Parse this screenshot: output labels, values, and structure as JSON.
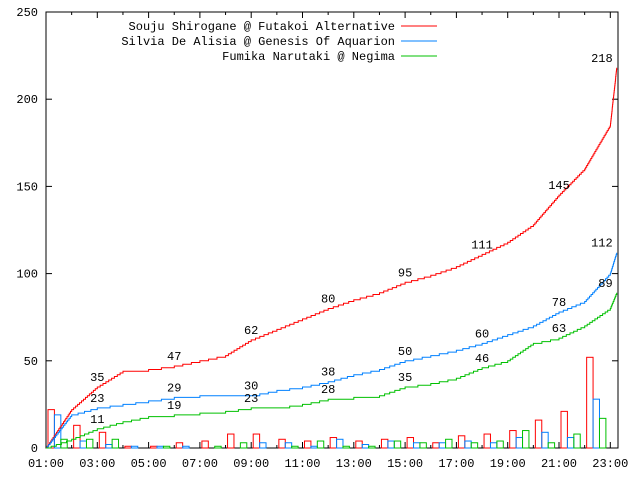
{
  "chart_data": {
    "type": "line",
    "title": "",
    "xlabel": "",
    "ylabel": "",
    "xlim_hours_from_0100": [
      0,
      22.3
    ],
    "ylim": [
      0,
      250
    ],
    "yticks": [
      0,
      50,
      100,
      150,
      200,
      250
    ],
    "xtick_labels": [
      "01:00",
      "03:00",
      "05:00",
      "07:00",
      "09:00",
      "11:00",
      "13:00",
      "15:00",
      "17:00",
      "19:00",
      "21:00",
      "23:00"
    ],
    "grid": false,
    "legend_position": "top-right",
    "x_hours": [
      0,
      1,
      2,
      3,
      4,
      5,
      6,
      7,
      8,
      9,
      10,
      11,
      12,
      13,
      14,
      15,
      16,
      17,
      18,
      19,
      20,
      21,
      22,
      22.25
    ],
    "series": [
      {
        "name": "Souju Shirogane @ Futakoi Alternative",
        "color": "#ff0000",
        "cumulative": [
          0,
          22,
          35,
          44,
          45,
          47,
          50,
          53,
          62,
          68,
          74,
          80,
          85,
          89,
          95,
          99,
          104,
          111,
          118,
          128,
          145,
          160,
          185,
          218
        ],
        "hourly_counts": [
          22,
          13,
          9,
          1,
          1,
          3,
          4,
          8,
          8,
          5,
          4,
          6,
          4,
          5,
          6,
          3,
          7,
          8,
          10,
          16,
          21,
          52
        ],
        "labels": [
          {
            "x": 2,
            "value": 35
          },
          {
            "x": 5,
            "value": 47
          },
          {
            "x": 8,
            "value": 62
          },
          {
            "x": 11,
            "value": 80
          },
          {
            "x": 14,
            "value": 95
          },
          {
            "x": 17,
            "value": 111
          },
          {
            "x": 20,
            "value": 145
          },
          {
            "x": 22.25,
            "value": 218
          }
        ]
      },
      {
        "name": "Silvia De Alisia @ Genesis Of Aquarion",
        "color": "#0080ff",
        "cumulative": [
          0,
          19,
          23,
          25,
          27,
          29,
          30,
          30,
          30,
          33,
          35,
          38,
          42,
          45,
          50,
          53,
          56,
          60,
          65,
          70,
          78,
          84,
          100,
          112
        ],
        "hourly_counts": [
          19,
          4,
          2,
          1,
          1,
          1,
          0,
          0,
          3,
          3,
          1,
          5,
          2,
          4,
          3,
          3,
          4,
          3,
          6,
          9,
          6,
          28
        ],
        "labels": [
          {
            "x": 2,
            "value": 23
          },
          {
            "x": 5,
            "value": 29
          },
          {
            "x": 8,
            "value": 30
          },
          {
            "x": 11,
            "value": 38
          },
          {
            "x": 14,
            "value": 50
          },
          {
            "x": 17,
            "value": 60
          },
          {
            "x": 20,
            "value": 78
          },
          {
            "x": 22.25,
            "value": 112
          }
        ]
      },
      {
        "name": "Fumika Narutaki @ Negima",
        "color": "#00c000",
        "cumulative": [
          0,
          5,
          11,
          15,
          18,
          19,
          20,
          21,
          23,
          23,
          25,
          28,
          29,
          30,
          35,
          37,
          40,
          46,
          50,
          60,
          63,
          70,
          80,
          89
        ],
        "hourly_counts": [
          5,
          5,
          5,
          0,
          1,
          0,
          1,
          3,
          0,
          1,
          4,
          1,
          1,
          4,
          3,
          5,
          3,
          4,
          10,
          3,
          8,
          17
        ],
        "labels": [
          {
            "x": 2,
            "value": 11
          },
          {
            "x": 5,
            "value": 19
          },
          {
            "x": 8,
            "value": 23
          },
          {
            "x": 11,
            "value": 28
          },
          {
            "x": 14,
            "value": 35
          },
          {
            "x": 17,
            "value": 46
          },
          {
            "x": 20,
            "value": 63
          },
          {
            "x": 22.25,
            "value": 89
          }
        ]
      }
    ]
  }
}
